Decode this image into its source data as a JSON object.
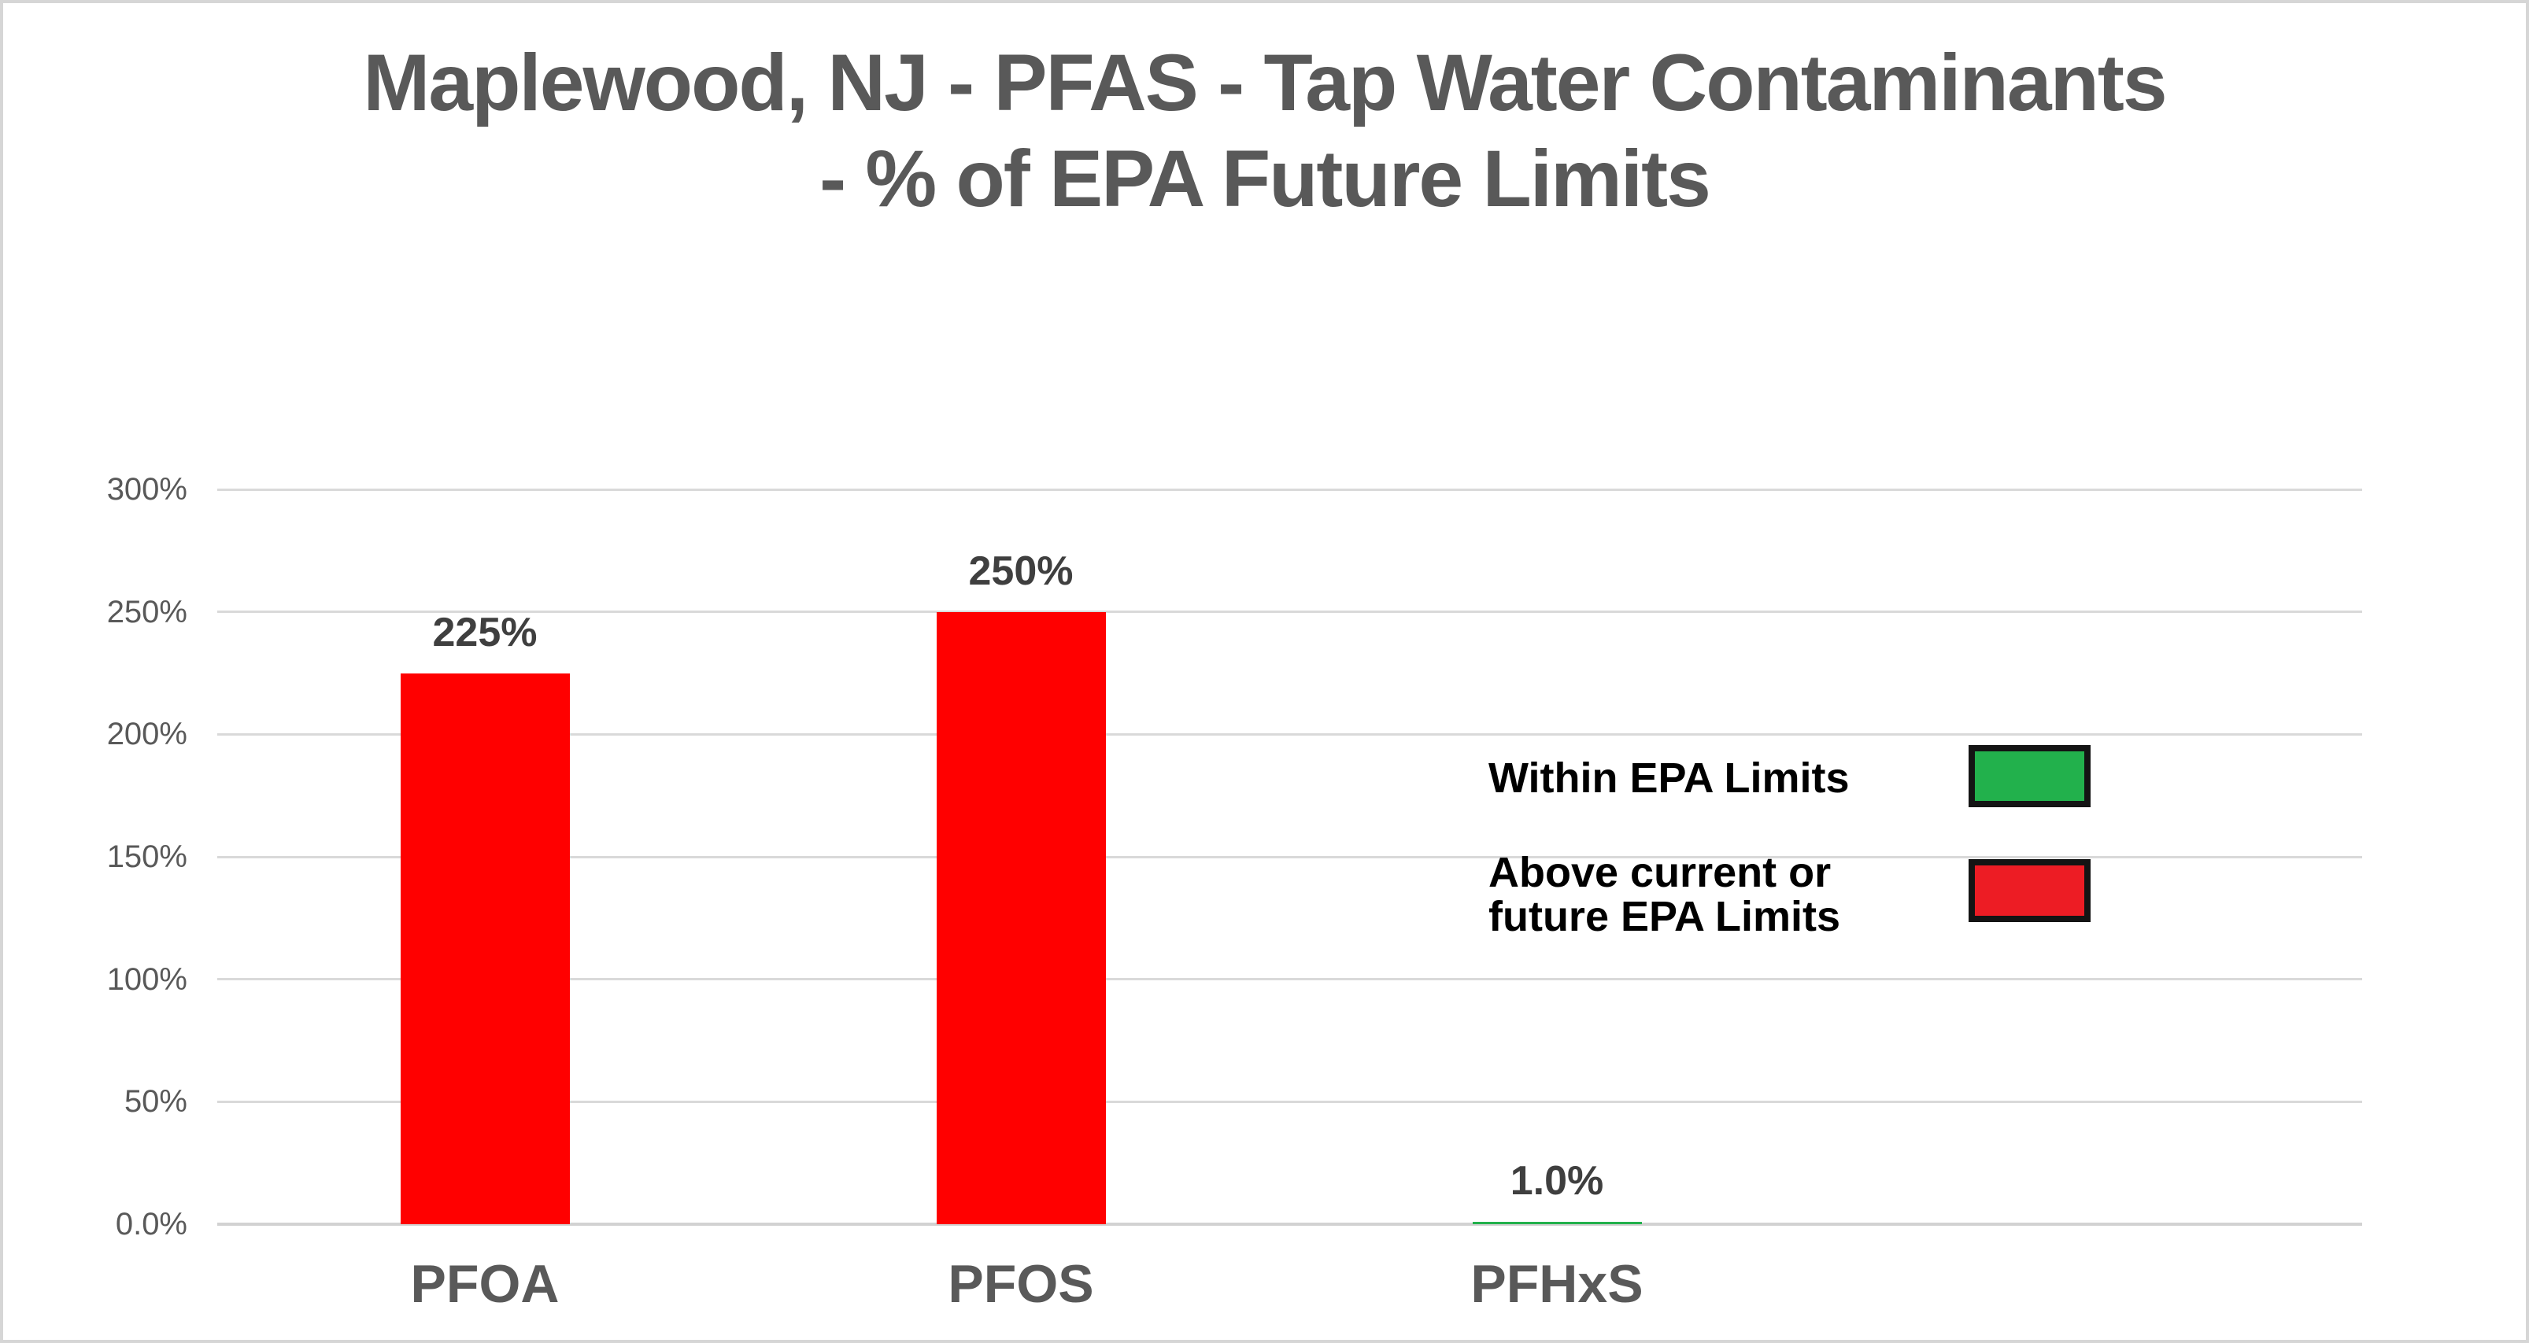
{
  "title": {
    "line1": "Maplewood, NJ - PFAS - Tap Water Contaminants",
    "line2": "- % of EPA Future Limits"
  },
  "chart_data": {
    "type": "bar",
    "title": "Maplewood, NJ - PFAS - Tap Water Contaminants - % of EPA Future Limits",
    "categories": [
      "PFOA",
      "PFOS",
      "PFHxS"
    ],
    "values": [
      225,
      250,
      1.0
    ],
    "bar_labels": [
      "225%",
      "250%",
      "1.0%"
    ],
    "bar_colors": [
      "#FF0000",
      "#FF0000",
      "#22B14C"
    ],
    "xlabel": "",
    "ylabel": "",
    "ylim": [
      0,
      300
    ],
    "yticks_bottom_to_top": [
      "0.0%",
      "50%",
      "100%",
      "150%",
      "200%",
      "250%",
      "300%"
    ],
    "grid": true,
    "legend_position": "right-middle"
  },
  "legend": {
    "items": [
      {
        "label_lines": [
          "Within EPA Limits"
        ],
        "color": "#22B14C"
      },
      {
        "label_lines": [
          "Above current or",
          "future EPA Limits"
        ],
        "color": "#ED1C24"
      }
    ]
  },
  "colors": {
    "bar_red": "#FF0000",
    "bar_green": "#22B14C",
    "legend_green": "#22B14C",
    "legend_red": "#ED1C24",
    "title_text": "#595959",
    "axis_text": "#595959",
    "value_label_text": "#3F3F3F",
    "gridline": "#D9D9D9"
  }
}
